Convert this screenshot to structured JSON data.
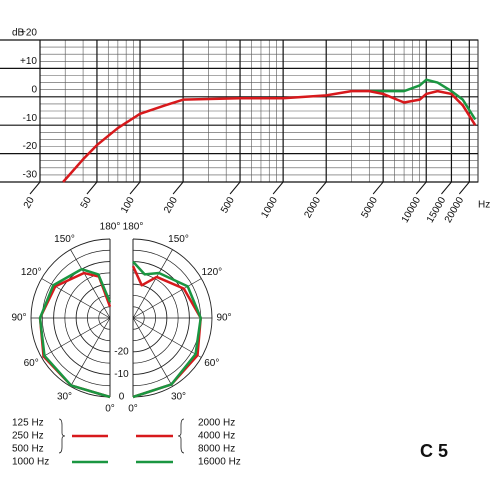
{
  "chart_data": [
    {
      "type": "line",
      "xscale": "log",
      "ylabel": "dB",
      "xlabel": "Hz",
      "xlim": [
        20,
        23000
      ],
      "ylim": [
        -30,
        20
      ],
      "xticks": [
        20,
        50,
        100,
        200,
        500,
        1000,
        2000,
        5000,
        10000,
        15000,
        20000
      ],
      "x_minor_ticks": [
        30,
        40,
        60,
        70,
        80,
        90,
        300,
        400,
        600,
        700,
        800,
        900,
        3000,
        4000,
        6000,
        7000,
        8000,
        9000
      ],
      "yticks": [
        {
          "value": 20,
          "label": "+20"
        },
        {
          "value": 10,
          "label": "+10"
        },
        0,
        -10,
        -20,
        -30
      ],
      "y_minor_ticks": [
        17.5,
        15,
        12.5,
        7.5,
        5,
        2.5,
        -2.5,
        -5,
        -7.5,
        -12.5,
        -15,
        -17.5,
        -22.5,
        -25,
        -27.5
      ],
      "grid": true,
      "x": [
        29,
        40,
        50,
        70,
        100,
        150,
        200,
        500,
        1000,
        2000,
        3000,
        4000,
        5000,
        7000,
        9000,
        10000,
        12000,
        15000,
        18000,
        22000
      ],
      "series": [
        {
          "color": "#1a9641",
          "values": [
            null,
            null,
            null,
            null,
            null,
            null,
            null,
            null,
            null,
            null,
            null,
            2,
            2,
            2,
            4,
            6,
            5,
            2,
            -1,
            -8
          ]
        },
        {
          "color": "#d7191c",
          "values": [
            -30,
            -22,
            -17,
            -11,
            -6,
            -3,
            -1,
            -0.5,
            -0.5,
            0.5,
            2,
            2,
            1,
            -2,
            -1,
            1,
            2,
            1,
            -3,
            -10
          ]
        }
      ]
    },
    {
      "type": "polar",
      "title": "C 5",
      "rlim": [
        -35,
        0
      ],
      "rticks": [
        -20,
        -10,
        0
      ],
      "r_minor_ticks": [
        -30,
        -25,
        -15,
        -5
      ],
      "angle_ticks": [
        {
          "value": 180,
          "label": "180°"
        },
        {
          "value": 150,
          "label": "150°"
        },
        {
          "value": 120,
          "label": "120°"
        },
        {
          "value": 90,
          "label": "90°"
        },
        {
          "value": 60,
          "label": "60°"
        },
        {
          "value": 30,
          "label": "30°"
        },
        {
          "value": 0,
          "label": "0°"
        }
      ],
      "angles": [
        0,
        30,
        60,
        90,
        120,
        150,
        165,
        180
      ],
      "series": [
        {
          "names": [
            "125 Hz",
            "250 Hz",
            "500 Hz"
          ],
          "color": "#d7191c",
          "side": "left",
          "values": [
            0,
            -0.5,
            -1,
            -4,
            -7,
            -12,
            -16,
            -30
          ]
        },
        {
          "names": [
            "1000 Hz"
          ],
          "color": "#1a9641",
          "side": "left",
          "values": [
            0,
            -0.5,
            -1.5,
            -4,
            -6,
            -10,
            -15,
            -28
          ]
        },
        {
          "names": [
            "2000 Hz",
            "4000 Hz",
            "8000 Hz"
          ],
          "color": "#d7191c",
          "side": "right",
          "values": [
            0,
            -1,
            -2,
            -5,
            -9,
            -14,
            -20,
            -12
          ]
        },
        {
          "names": [
            "16000 Hz"
          ],
          "color": "#1a9641",
          "side": "right",
          "values": [
            0,
            -1,
            -3,
            -5,
            -7,
            -12,
            -15,
            -10
          ]
        }
      ]
    }
  ]
}
